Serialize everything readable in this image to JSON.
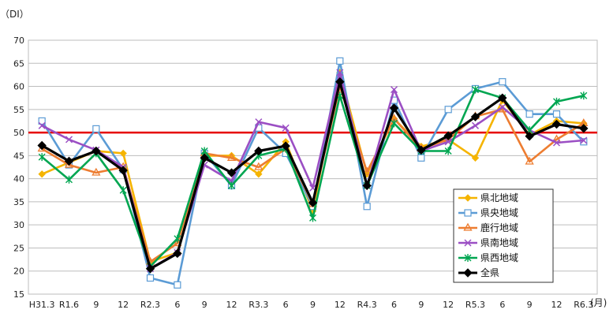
{
  "chart_data": {
    "type": "line",
    "y_unit": "（DI）",
    "x_unit": "(月)",
    "ylim": [
      15,
      70
    ],
    "yticks": [
      15,
      20,
      25,
      30,
      35,
      40,
      45,
      50,
      55,
      60,
      65,
      70
    ],
    "grid": true,
    "legend_position": "bottom-right",
    "reference_line": {
      "value": 50,
      "color": "#e60000"
    },
    "categories": [
      "H31.3",
      "R1.6",
      "9",
      "12",
      "R2.3",
      "6",
      "9",
      "12",
      "R3.3",
      "6",
      "9",
      "12",
      "R4.3",
      "6",
      "9",
      "12",
      "R5.3",
      "6",
      "9",
      "12",
      "R6.3"
    ],
    "series": [
      {
        "name": "県北地域",
        "color": "#f5b400",
        "marker": "diamond",
        "values": [
          41.0,
          43.5,
          46.0,
          45.5,
          22.0,
          24.0,
          45.0,
          45.0,
          41.0,
          48.0,
          33.0,
          63.0,
          41.0,
          53.0,
          47.0,
          48.5,
          44.5,
          57.0,
          49.5,
          52.5,
          52.0
        ]
      },
      {
        "name": "県央地域",
        "color": "#5b9bd5",
        "marker": "square",
        "values": [
          52.5,
          43.0,
          50.8,
          42.0,
          18.5,
          17.0,
          45.5,
          38.5,
          51.0,
          45.5,
          34.0,
          65.5,
          34.0,
          57.0,
          44.5,
          55.0,
          59.5,
          61.0,
          54.0,
          54.0,
          48.0
        ]
      },
      {
        "name": "鹿行地域",
        "color": "#ed7d31",
        "marker": "triangle",
        "values": [
          46.5,
          43.0,
          41.3,
          42.5,
          22.0,
          26.0,
          45.5,
          44.5,
          42.5,
          46.5,
          34.5,
          60.0,
          41.5,
          53.0,
          46.5,
          48.5,
          53.5,
          55.0,
          43.7,
          48.5,
          52.0
        ]
      },
      {
        "name": "県南地域",
        "color": "#9b4fc4",
        "marker": "x",
        "values": [
          51.5,
          48.5,
          46.2,
          42.5,
          20.5,
          24.0,
          43.0,
          39.5,
          52.3,
          51.0,
          38.0,
          63.0,
          38.5,
          59.3,
          46.0,
          48.0,
          51.5,
          55.5,
          50.5,
          47.8,
          48.3
        ]
      },
      {
        "name": "県西地域",
        "color": "#00a651",
        "marker": "asterisk",
        "values": [
          44.7,
          39.8,
          45.5,
          37.5,
          21.0,
          27.0,
          46.0,
          38.5,
          45.0,
          46.5,
          31.5,
          58.0,
          38.5,
          52.0,
          46.0,
          46.0,
          59.3,
          57.5,
          50.5,
          56.7,
          58.0
        ]
      },
      {
        "name": "全県",
        "color": "#000000",
        "marker": "diamond-filled",
        "bold": true,
        "values": [
          47.2,
          43.8,
          46.0,
          41.8,
          20.5,
          23.8,
          44.5,
          41.3,
          46.0,
          47.1,
          34.8,
          61.0,
          38.5,
          55.3,
          46.2,
          49.3,
          53.4,
          57.5,
          49.2,
          51.8,
          50.9
        ]
      }
    ]
  }
}
